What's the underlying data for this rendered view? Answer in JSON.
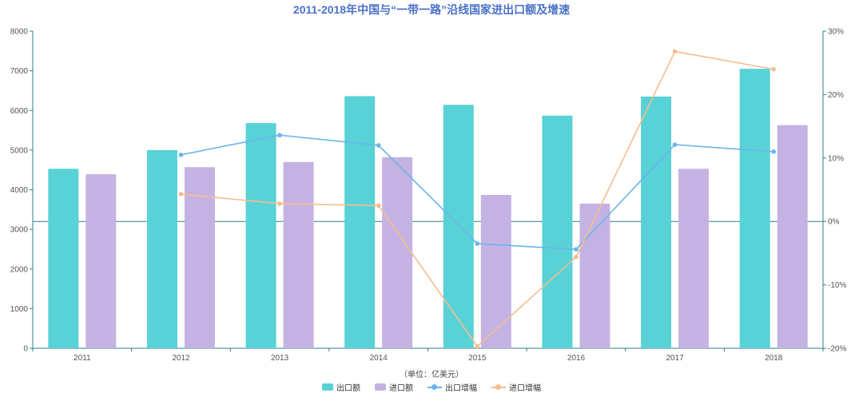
{
  "title": "2011-2018年中国与“一带一路”沿线国家进出口额及增速",
  "unit_label": "（单位：亿美元）",
  "colors": {
    "export": "#58d2d6",
    "import": "#c4b3e2",
    "export_growth": "#6ab4ec",
    "import_growth": "#f6bd8e",
    "axis": "#2f7f8a"
  },
  "chart_data": {
    "type": "bar",
    "categories": [
      "2011",
      "2012",
      "2013",
      "2014",
      "2015",
      "2016",
      "2017",
      "2018"
    ],
    "series": [
      {
        "name": "出口额",
        "type": "bar",
        "axis": "left",
        "values": [
          4530,
          5000,
          5680,
          6360,
          6140,
          5870,
          6350,
          7050
        ]
      },
      {
        "name": "进口额",
        "type": "bar",
        "axis": "left",
        "values": [
          4390,
          4570,
          4700,
          4820,
          3870,
          3650,
          4530,
          5630
        ]
      },
      {
        "name": "出口增幅",
        "type": "line",
        "axis": "right",
        "values": [
          null,
          10.5,
          13.6,
          12.0,
          -3.5,
          -4.4,
          12.1,
          11.0
        ]
      },
      {
        "name": "进口增幅",
        "type": "line",
        "axis": "right",
        "values": [
          null,
          4.3,
          2.8,
          2.5,
          -19.7,
          -5.6,
          26.8,
          24.0
        ]
      }
    ],
    "y_left": {
      "min": 0,
      "max": 8000,
      "ticks": [
        "0",
        "1000",
        "2000",
        "3000",
        "4000",
        "5000",
        "6000",
        "7000",
        "8000"
      ]
    },
    "y_right": {
      "min": -20,
      "max": 30,
      "ticks": [
        "-20%",
        "-10%",
        "0%",
        "10%",
        "20%",
        "30%"
      ]
    },
    "grid": false,
    "legend_position": "bottom"
  }
}
